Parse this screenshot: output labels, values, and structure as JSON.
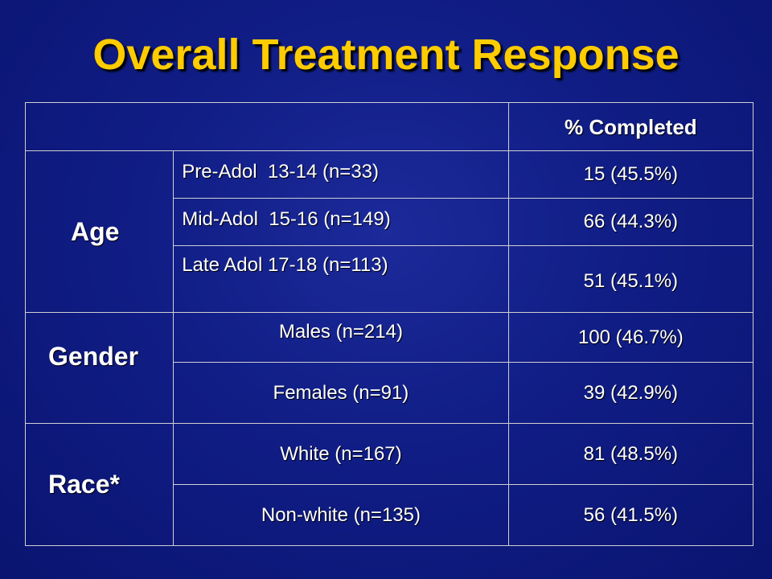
{
  "slide": {
    "title": "Overall Treatment Response"
  },
  "table": {
    "header": {
      "completed": "% Completed"
    },
    "groups": [
      {
        "category": "Age",
        "rows": [
          {
            "label": "Pre-Adol  13-14 (n=33)",
            "value": "15 (45.5%)"
          },
          {
            "label": "Mid-Adol  15-16 (n=149)",
            "value": "66 (44.3%)"
          },
          {
            "label": "Late Adol 17-18 (n=113)",
            "value": "51 (45.1%)"
          }
        ]
      },
      {
        "category": "Gender",
        "rows": [
          {
            "label": "Males (n=214)",
            "value": "100 (46.7%)"
          },
          {
            "label": "Females (n=91)",
            "value": "39 (42.9%)"
          }
        ]
      },
      {
        "category": "Race*",
        "rows": [
          {
            "label": "White (n=167)",
            "value": "81 (48.5%)"
          },
          {
            "label": "Non-white (n=135)",
            "value": "56 (41.5%)"
          }
        ]
      }
    ]
  },
  "colors": {
    "background": "#101d85",
    "title": "#ffcc00",
    "text": "#ffffff",
    "border": "#d0d0d0"
  }
}
